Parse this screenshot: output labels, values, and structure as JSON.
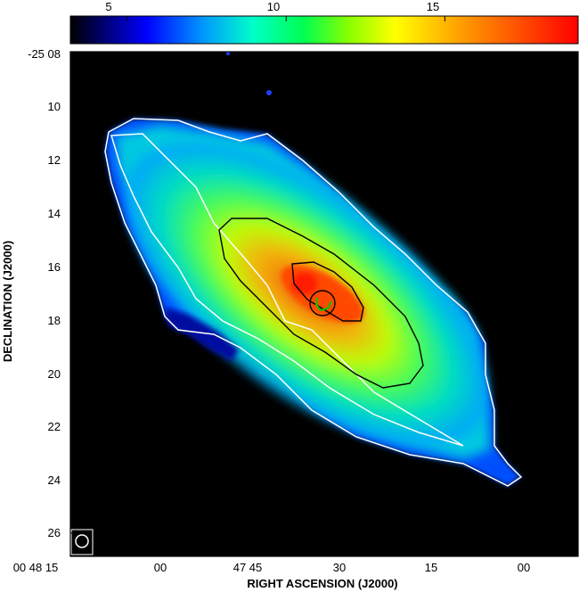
{
  "chart_data": {
    "type": "heatmap",
    "title": "",
    "xlabel": "RIGHT ASCENSION (J2000)",
    "ylabel": "DECLINATION (J2000)",
    "x_tick_labels": [
      "00 48 15",
      "00",
      "47 45",
      "30",
      "15",
      "00"
    ],
    "y_tick_labels": [
      "-25 08",
      "10",
      "12",
      "14",
      "16",
      "18",
      "20",
      "22",
      "24",
      "26"
    ],
    "y_values": [
      8,
      10,
      12,
      14,
      16,
      18,
      20,
      22,
      24,
      26
    ],
    "x_values_seconds": [
      15,
      0,
      -15,
      -30,
      -45,
      -60
    ],
    "colorbar": {
      "tick_labels": [
        "5",
        "10",
        "15"
      ],
      "ticks": [
        5,
        10,
        15
      ],
      "range": [
        3.2,
        19.2
      ],
      "colors": [
        "#000000",
        "#0000a0",
        "#0050ff",
        "#00c8ff",
        "#00ff90",
        "#b4ff00",
        "#ffff00",
        "#ff8c00",
        "#ff0000"
      ]
    },
    "contours": [
      {
        "color": "#ffffff",
        "level_index": 1
      },
      {
        "color": "#ffffff",
        "level_index": 2
      },
      {
        "color": "#000000",
        "level_index": 3
      },
      {
        "color": "#000000",
        "level_index": 4
      },
      {
        "color": "#000000",
        "level_index": 5
      }
    ],
    "beam": "circle",
    "grid": false,
    "background": "#000000"
  }
}
